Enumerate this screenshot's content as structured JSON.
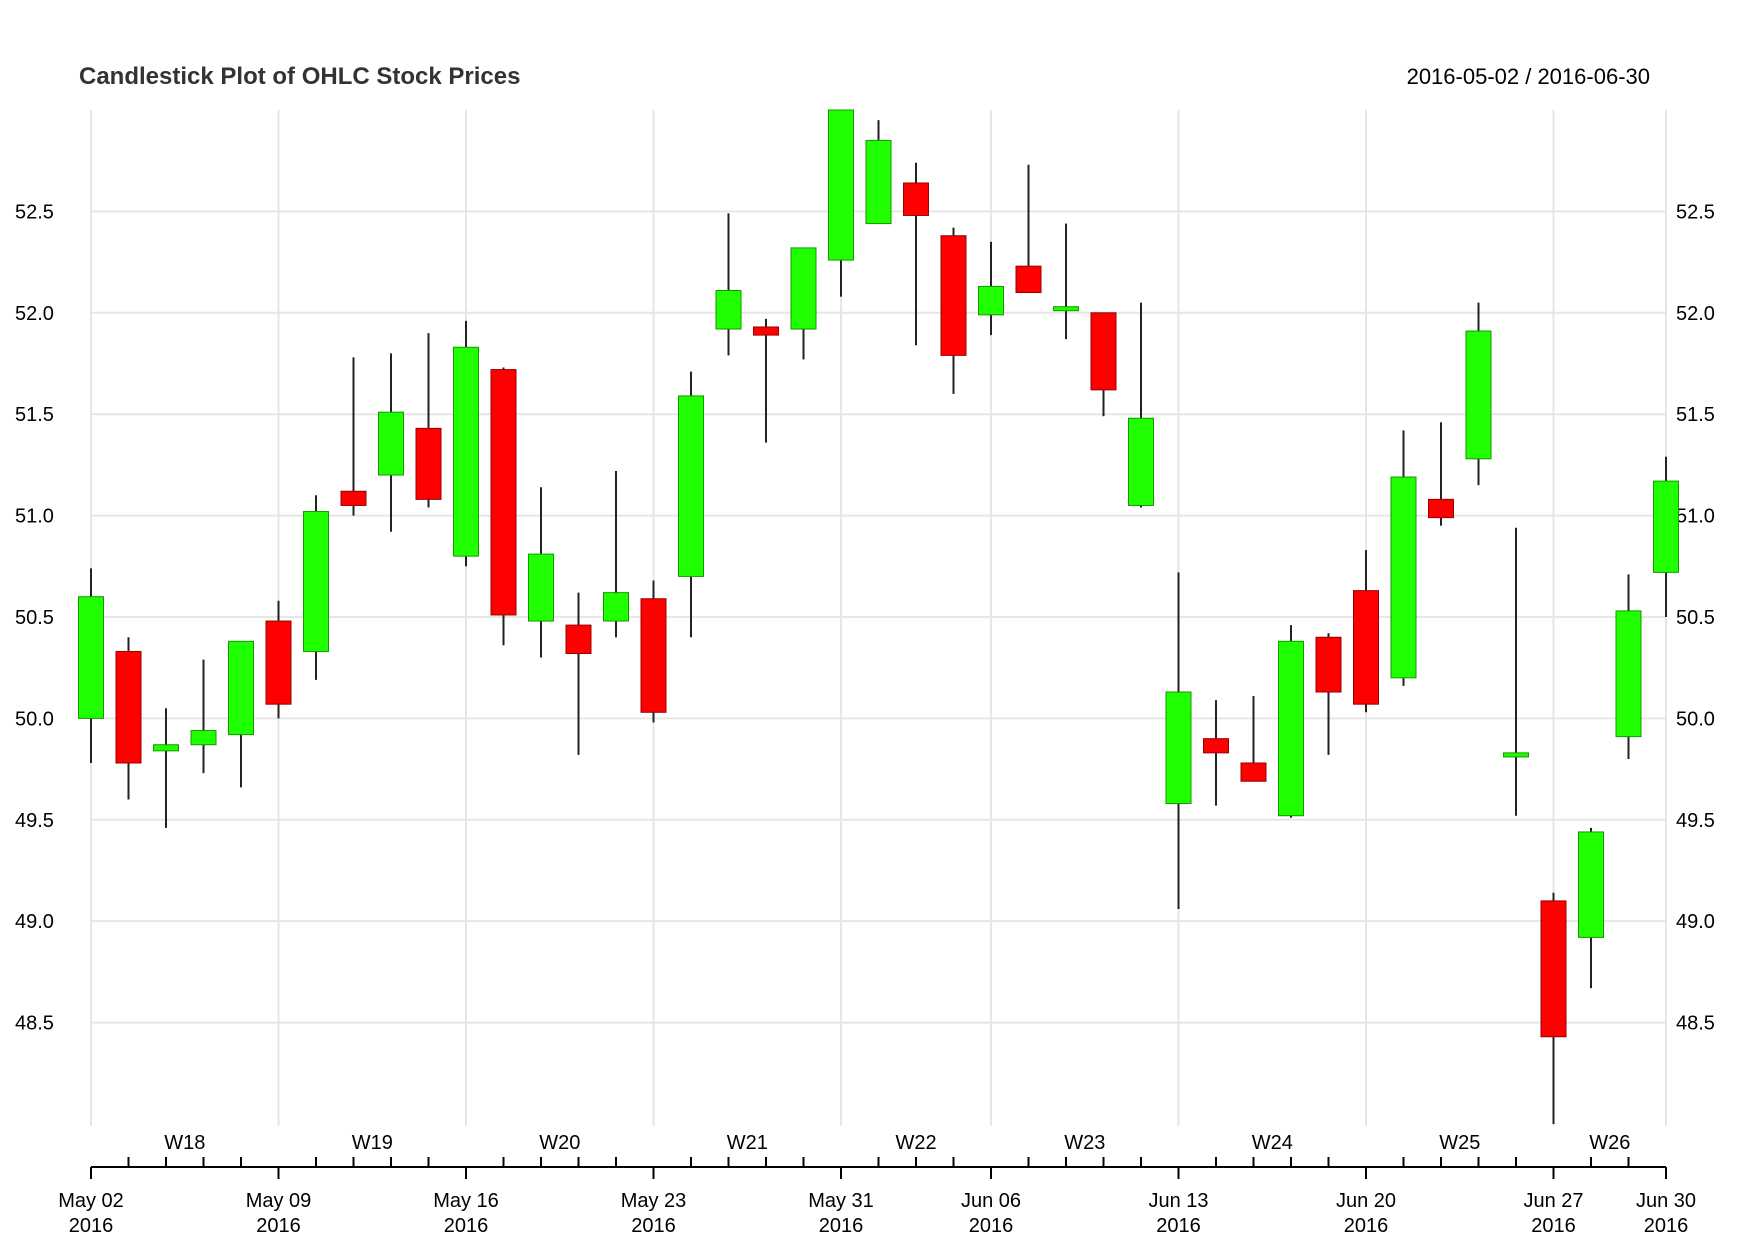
{
  "chart_data": {
    "type": "candlestick",
    "title": "Candlestick Plot of OHLC Stock Prices",
    "date_range": "2016-05-02 / 2016-06-30",
    "ylim": [
      47.99,
      53.0
    ],
    "yticks": [
      48.5,
      49.0,
      49.5,
      50.0,
      50.5,
      51.0,
      51.5,
      52.0,
      52.5
    ],
    "ytick_labels": [
      "48.5",
      "49.0",
      "49.5",
      "50.0",
      "50.5",
      "51.0",
      "51.5",
      "52.0",
      "52.5"
    ],
    "grid": true,
    "up_color": "#1fff00",
    "down_color": "#ff0000",
    "series": [
      {
        "date": "2016-05-02",
        "open": 50.0,
        "high": 50.74,
        "low": 49.78,
        "close": 50.6
      },
      {
        "date": "2016-05-03",
        "open": 50.33,
        "high": 50.4,
        "low": 49.6,
        "close": 49.78
      },
      {
        "date": "2016-05-04",
        "open": 49.84,
        "high": 50.05,
        "low": 49.46,
        "close": 49.87
      },
      {
        "date": "2016-05-05",
        "open": 49.87,
        "high": 50.29,
        "low": 49.73,
        "close": 49.94
      },
      {
        "date": "2016-05-06",
        "open": 49.92,
        "high": 50.38,
        "low": 49.66,
        "close": 50.38
      },
      {
        "date": "2016-05-09",
        "open": 50.48,
        "high": 50.58,
        "low": 50.0,
        "close": 50.07
      },
      {
        "date": "2016-05-10",
        "open": 50.33,
        "high": 51.1,
        "low": 50.19,
        "close": 51.02
      },
      {
        "date": "2016-05-11",
        "open": 51.12,
        "high": 51.78,
        "low": 51.0,
        "close": 51.05
      },
      {
        "date": "2016-05-12",
        "open": 51.2,
        "high": 51.8,
        "low": 50.92,
        "close": 51.51
      },
      {
        "date": "2016-05-13",
        "open": 51.43,
        "high": 51.9,
        "low": 51.04,
        "close": 51.08
      },
      {
        "date": "2016-05-16",
        "open": 50.8,
        "high": 51.96,
        "low": 50.75,
        "close": 51.83
      },
      {
        "date": "2016-05-17",
        "open": 51.72,
        "high": 51.73,
        "low": 50.36,
        "close": 50.51
      },
      {
        "date": "2016-05-18",
        "open": 50.48,
        "high": 51.14,
        "low": 50.3,
        "close": 50.81
      },
      {
        "date": "2016-05-19",
        "open": 50.46,
        "high": 50.62,
        "low": 49.82,
        "close": 50.32
      },
      {
        "date": "2016-05-20",
        "open": 50.48,
        "high": 51.22,
        "low": 50.4,
        "close": 50.62
      },
      {
        "date": "2016-05-23",
        "open": 50.59,
        "high": 50.68,
        "low": 49.98,
        "close": 50.03
      },
      {
        "date": "2016-05-24",
        "open": 50.7,
        "high": 51.71,
        "low": 50.4,
        "close": 51.59
      },
      {
        "date": "2016-05-25",
        "open": 51.92,
        "high": 52.49,
        "low": 51.79,
        "close": 52.11
      },
      {
        "date": "2016-05-26",
        "open": 51.93,
        "high": 51.97,
        "low": 51.36,
        "close": 51.89
      },
      {
        "date": "2016-05-27",
        "open": 51.92,
        "high": 52.32,
        "low": 51.77,
        "close": 52.32
      },
      {
        "date": "2016-05-31",
        "open": 52.26,
        "high": 53.05,
        "low": 52.08,
        "close": 53.0
      },
      {
        "date": "2016-06-01",
        "open": 52.44,
        "high": 52.95,
        "low": 52.44,
        "close": 52.85
      },
      {
        "date": "2016-06-02",
        "open": 52.64,
        "high": 52.74,
        "low": 51.84,
        "close": 52.48
      },
      {
        "date": "2016-06-03",
        "open": 52.38,
        "high": 52.42,
        "low": 51.6,
        "close": 51.79
      },
      {
        "date": "2016-06-06",
        "open": 51.99,
        "high": 52.35,
        "low": 51.89,
        "close": 52.13
      },
      {
        "date": "2016-06-07",
        "open": 52.23,
        "high": 52.73,
        "low": 52.1,
        "close": 52.1
      },
      {
        "date": "2016-06-08",
        "open": 52.02,
        "high": 52.44,
        "low": 51.87,
        "close": 52.03
      },
      {
        "date": "2016-06-09",
        "open": 52.0,
        "high": 52.0,
        "low": 51.49,
        "close": 51.62
      },
      {
        "date": "2016-06-10",
        "open": 51.05,
        "high": 52.05,
        "low": 51.04,
        "close": 51.48
      },
      {
        "date": "2016-06-13",
        "open": 49.58,
        "high": 50.72,
        "low": 49.06,
        "close": 50.13
      },
      {
        "date": "2016-06-14",
        "open": 49.9,
        "high": 50.09,
        "low": 49.57,
        "close": 49.83
      },
      {
        "date": "2016-06-15",
        "open": 49.78,
        "high": 50.11,
        "low": 49.69,
        "close": 49.69
      },
      {
        "date": "2016-06-16",
        "open": 49.52,
        "high": 50.46,
        "low": 49.51,
        "close": 50.38
      },
      {
        "date": "2016-06-17",
        "open": 50.4,
        "high": 50.42,
        "low": 49.82,
        "close": 50.13
      },
      {
        "date": "2016-06-20",
        "open": 50.63,
        "high": 50.83,
        "low": 50.03,
        "close": 50.07
      },
      {
        "date": "2016-06-21",
        "open": 50.2,
        "high": 51.42,
        "low": 50.16,
        "close": 51.19
      },
      {
        "date": "2016-06-22",
        "open": 51.08,
        "high": 51.46,
        "low": 50.95,
        "close": 50.99
      },
      {
        "date": "2016-06-23",
        "open": 51.28,
        "high": 52.05,
        "low": 51.15,
        "close": 51.91
      },
      {
        "date": "2016-06-24",
        "open": 49.81,
        "high": 50.94,
        "low": 49.52,
        "close": 49.83
      },
      {
        "date": "2016-06-27",
        "open": 49.1,
        "high": 49.14,
        "low": 48.0,
        "close": 48.43
      },
      {
        "date": "2016-06-28",
        "open": 48.92,
        "high": 49.46,
        "low": 48.67,
        "close": 49.44
      },
      {
        "date": "2016-06-29",
        "open": 49.91,
        "high": 50.71,
        "low": 49.8,
        "close": 50.53
      },
      {
        "date": "2016-06-30",
        "open": 50.72,
        "high": 51.29,
        "low": 50.5,
        "close": 51.17
      }
    ],
    "x_major_ticks": [
      {
        "index": 0,
        "label": [
          "May 02",
          "2016"
        ]
      },
      {
        "index": 5,
        "label": [
          "May 09",
          "2016"
        ]
      },
      {
        "index": 10,
        "label": [
          "May 16",
          "2016"
        ]
      },
      {
        "index": 15,
        "label": [
          "May 23",
          "2016"
        ]
      },
      {
        "index": 20,
        "label": [
          "May 31",
          "2016"
        ]
      },
      {
        "index": 24,
        "label": [
          "Jun 06",
          "2016"
        ]
      },
      {
        "index": 29,
        "label": [
          "Jun 13",
          "2016"
        ]
      },
      {
        "index": 34,
        "label": [
          "Jun 20",
          "2016"
        ]
      },
      {
        "index": 39,
        "label": [
          "Jun 27",
          "2016"
        ]
      },
      {
        "index": 42,
        "label": [
          "Jun 30",
          "2016"
        ]
      }
    ],
    "week_labels": [
      {
        "from": 0,
        "to": 5,
        "label": "W18"
      },
      {
        "from": 5,
        "to": 10,
        "label": "W19"
      },
      {
        "from": 10,
        "to": 15,
        "label": "W20"
      },
      {
        "from": 15,
        "to": 20,
        "label": "W21"
      },
      {
        "from": 20,
        "to": 24,
        "label": "W22"
      },
      {
        "from": 24,
        "to": 29,
        "label": "W23"
      },
      {
        "from": 29,
        "to": 34,
        "label": "W24"
      },
      {
        "from": 34,
        "to": 39,
        "label": "W25"
      },
      {
        "from": 39,
        "to": 42,
        "label": "W26"
      }
    ]
  }
}
